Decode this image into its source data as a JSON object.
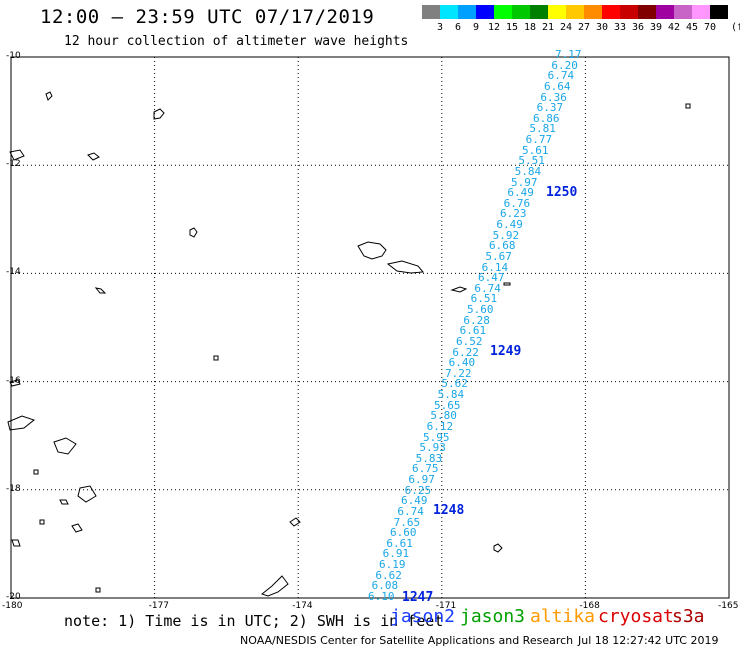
{
  "header": {
    "title": "12:00 – 23:59 UTC 07/17/2019",
    "subtitle": "12 hour collection of altimeter wave heights"
  },
  "color_scale": {
    "unit": "(ft)",
    "swatches": [
      {
        "label": "3",
        "color": "#808080"
      },
      {
        "label": "6",
        "color": "#00e5ff"
      },
      {
        "label": "9",
        "color": "#00a0ff"
      },
      {
        "label": "12",
        "color": "#0000ff"
      },
      {
        "label": "15",
        "color": "#00ff00"
      },
      {
        "label": "18",
        "color": "#00c800"
      },
      {
        "label": "21",
        "color": "#008000"
      },
      {
        "label": "24",
        "color": "#ffff00"
      },
      {
        "label": "27",
        "color": "#ffc800"
      },
      {
        "label": "30",
        "color": "#ff8c00"
      },
      {
        "label": "33",
        "color": "#ff0000"
      },
      {
        "label": "36",
        "color": "#c80000"
      },
      {
        "label": "39",
        "color": "#800000"
      },
      {
        "label": "42",
        "color": "#a000a0"
      },
      {
        "label": "45",
        "color": "#c864c8"
      },
      {
        "label": "70",
        "color": "#ff96ff"
      },
      {
        "label": "",
        "color": "#000000"
      }
    ]
  },
  "axes": {
    "lat_labels": [
      "-10",
      "-12",
      "-14",
      "-16",
      "-18",
      "-20"
    ],
    "lon_labels": [
      "-180",
      "-177",
      "-174",
      "-171",
      "-168",
      "-165"
    ]
  },
  "track": {
    "values": [
      "7.17",
      "6.20",
      "6.74",
      "6.64",
      "6.36",
      "6.37",
      "6.86",
      "5.81",
      "6.77",
      "5.61",
      "5.51",
      "5.84",
      "5.97",
      "6.49",
      "6.76",
      "6.23",
      "6.49",
      "5.92",
      "6.68",
      "5.67",
      "6.14",
      "6.47",
      "6.74",
      "6.51",
      "5.60",
      "6.28",
      "6.61",
      "6.52",
      "6.22",
      "6.40",
      "7.22",
      "5.62",
      "5.84",
      "5.65",
      "5.80",
      "6.12",
      "5.95",
      "5.93",
      "5.83",
      "6.75",
      "6.97",
      "6.25",
      "6.49",
      "6.74",
      "7.65",
      "6.60",
      "6.61",
      "6.91",
      "6.19",
      "6.62",
      "6.08",
      "6.10"
    ],
    "passes": [
      "1250",
      "1249",
      "1248",
      "1247"
    ]
  },
  "note": "note: 1) Time is in UTC; 2) SWH is in feet",
  "satellites": [
    {
      "name": "jason2",
      "color": "#1a3cff"
    },
    {
      "name": "jason3",
      "color": "#00a000"
    },
    {
      "name": "altika",
      "color": "#ff9900"
    },
    {
      "name": "cryosat",
      "color": "#dd0000"
    },
    {
      "name": "s3a",
      "color": "#aa0000"
    }
  ],
  "footer": {
    "credit": "NOAA/NESDIS Center for Satellite Applications and Research",
    "timestamp": "Jul 18 12:27:42 UTC 2019"
  }
}
